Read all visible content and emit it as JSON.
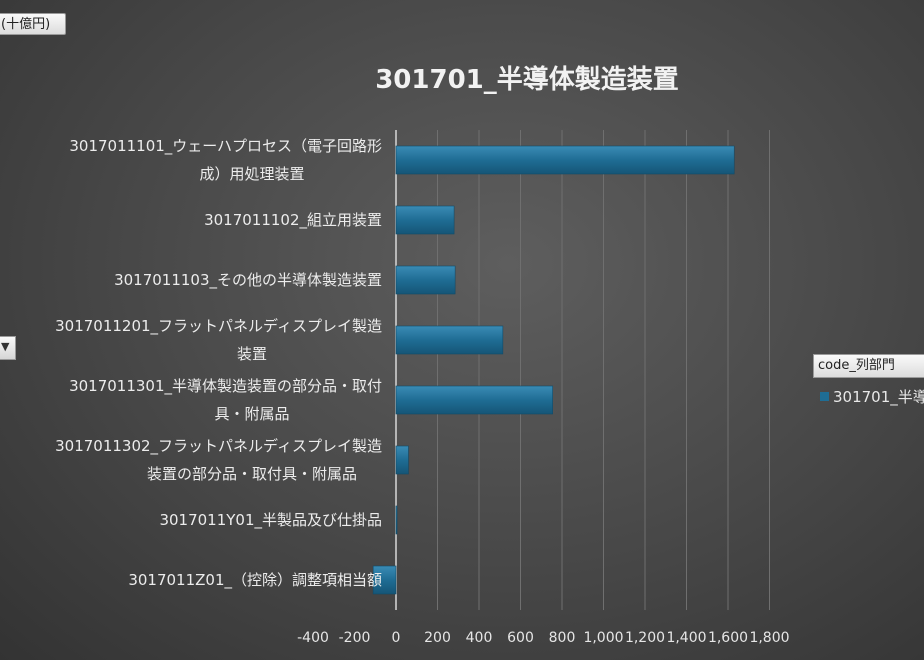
{
  "unit_button": {
    "label": "(十億円)"
  },
  "filter_dropdown": {
    "arrow": "▼"
  },
  "legend": {
    "header": "code_列部門",
    "item": "301701_半導"
  },
  "chart_data": {
    "type": "bar",
    "orientation": "horizontal",
    "title": "301701_半導体製造装置",
    "categories": [
      [
        "3017011101_ウェーハプロセス（電子回路形",
        "成）用処理装置"
      ],
      [
        "3017011102_組立用装置"
      ],
      [
        "3017011103_その他の半導体製造装置"
      ],
      [
        "3017011201_フラットパネルディスプレイ製造",
        "装置"
      ],
      [
        "3017011301_半導体製造装置の部分品・取付",
        "具・附属品"
      ],
      [
        "3017011302_フラットパネルディスプレイ製造",
        "装置の部分品・取付具・附属品"
      ],
      [
        "3017011Y01_半製品及び仕掛品"
      ],
      [
        "3017011Z01_（控除）調整項相当額"
      ]
    ],
    "series": [
      {
        "name": "301701_半導",
        "values": [
          1630,
          280,
          285,
          515,
          755,
          60,
          5,
          -110
        ],
        "color": "#1f6d94"
      }
    ],
    "xlim": [
      -400,
      1800
    ],
    "ticks": [
      -400,
      -200,
      0,
      200,
      400,
      600,
      800,
      1000,
      1200,
      1400,
      1600,
      1800
    ],
    "tick_labels": [
      "-400",
      "-200",
      "0",
      "200",
      "400",
      "600",
      "800",
      "1,000",
      "1,200",
      "1,400",
      "1,600",
      "1,800"
    ]
  }
}
